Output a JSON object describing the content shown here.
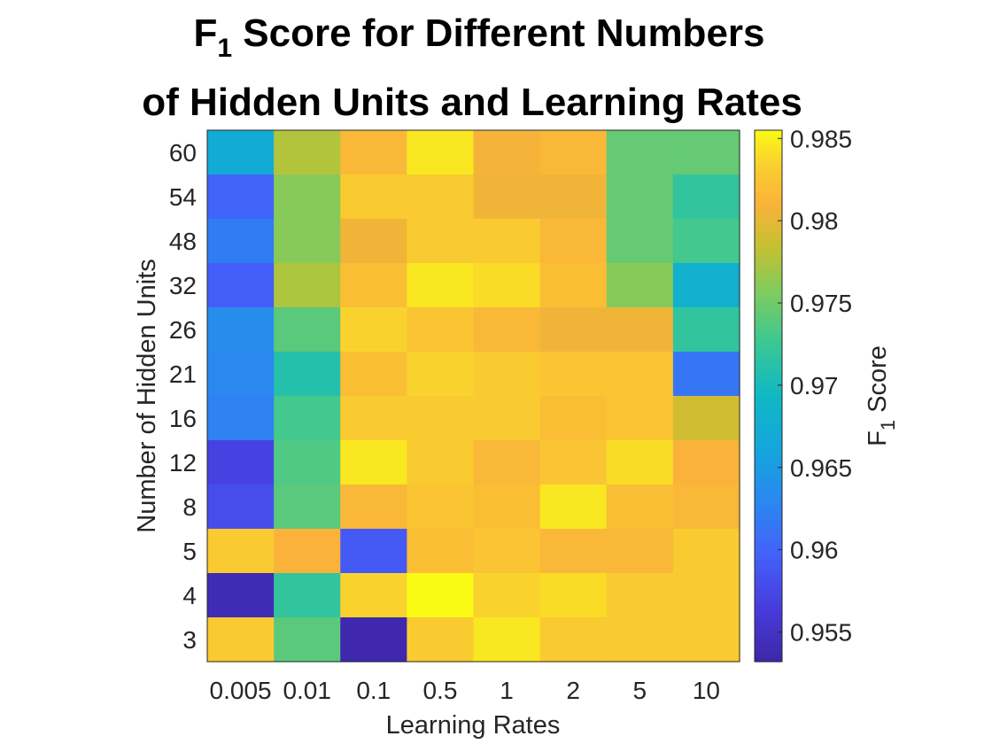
{
  "chart_data": {
    "type": "heatmap",
    "title": {
      "line1_prefix": "F",
      "line1_subscript": "1",
      "line1_suffix": " Score for Different Numbers",
      "line2": "of Hidden Units and Learning Rates"
    },
    "xlabel": "Learning Rates",
    "ylabel": "Number of Hidden Units",
    "colorbar_label": {
      "prefix": "F",
      "subscript": "1",
      "suffix": " Score"
    },
    "x_categories": [
      "0.005",
      "0.01",
      "0.1",
      "0.5",
      "1",
      "2",
      "5",
      "10"
    ],
    "y_categories": [
      "60",
      "54",
      "48",
      "32",
      "26",
      "21",
      "16",
      "12",
      "8",
      "5",
      "4",
      "3"
    ],
    "color_range": [
      0.9532,
      0.9855
    ],
    "colorbar_ticks": [
      "0.955",
      "0.96",
      "0.965",
      "0.97",
      "0.975",
      "0.98",
      "0.985"
    ],
    "colormap": "parula",
    "values": [
      [
        0.967,
        0.9777,
        0.9815,
        0.9845,
        0.9808,
        0.9815,
        0.9745,
        0.9745
      ],
      [
        0.96,
        0.976,
        0.983,
        0.983,
        0.9805,
        0.9805,
        0.9745,
        0.972
      ],
      [
        0.962,
        0.976,
        0.9805,
        0.983,
        0.983,
        0.9815,
        0.9745,
        0.973
      ],
      [
        0.9595,
        0.9775,
        0.982,
        0.9845,
        0.984,
        0.982,
        0.976,
        0.968
      ],
      [
        0.9635,
        0.974,
        0.9835,
        0.9825,
        0.9815,
        0.9805,
        0.9805,
        0.972
      ],
      [
        0.963,
        0.971,
        0.982,
        0.9835,
        0.983,
        0.9825,
        0.9825,
        0.9615
      ],
      [
        0.9625,
        0.973,
        0.983,
        0.983,
        0.983,
        0.982,
        0.9825,
        0.979
      ],
      [
        0.957,
        0.9735,
        0.9845,
        0.983,
        0.9815,
        0.9825,
        0.984,
        0.981
      ],
      [
        0.958,
        0.974,
        0.9815,
        0.9825,
        0.982,
        0.9845,
        0.982,
        0.9815
      ],
      [
        0.983,
        0.981,
        0.959,
        0.982,
        0.9825,
        0.9815,
        0.9815,
        0.983
      ],
      [
        0.954,
        0.972,
        0.9835,
        0.9855,
        0.9835,
        0.984,
        0.983,
        0.983
      ],
      [
        0.983,
        0.974,
        0.9535,
        0.983,
        0.9845,
        0.983,
        0.983,
        0.983
      ]
    ]
  }
}
